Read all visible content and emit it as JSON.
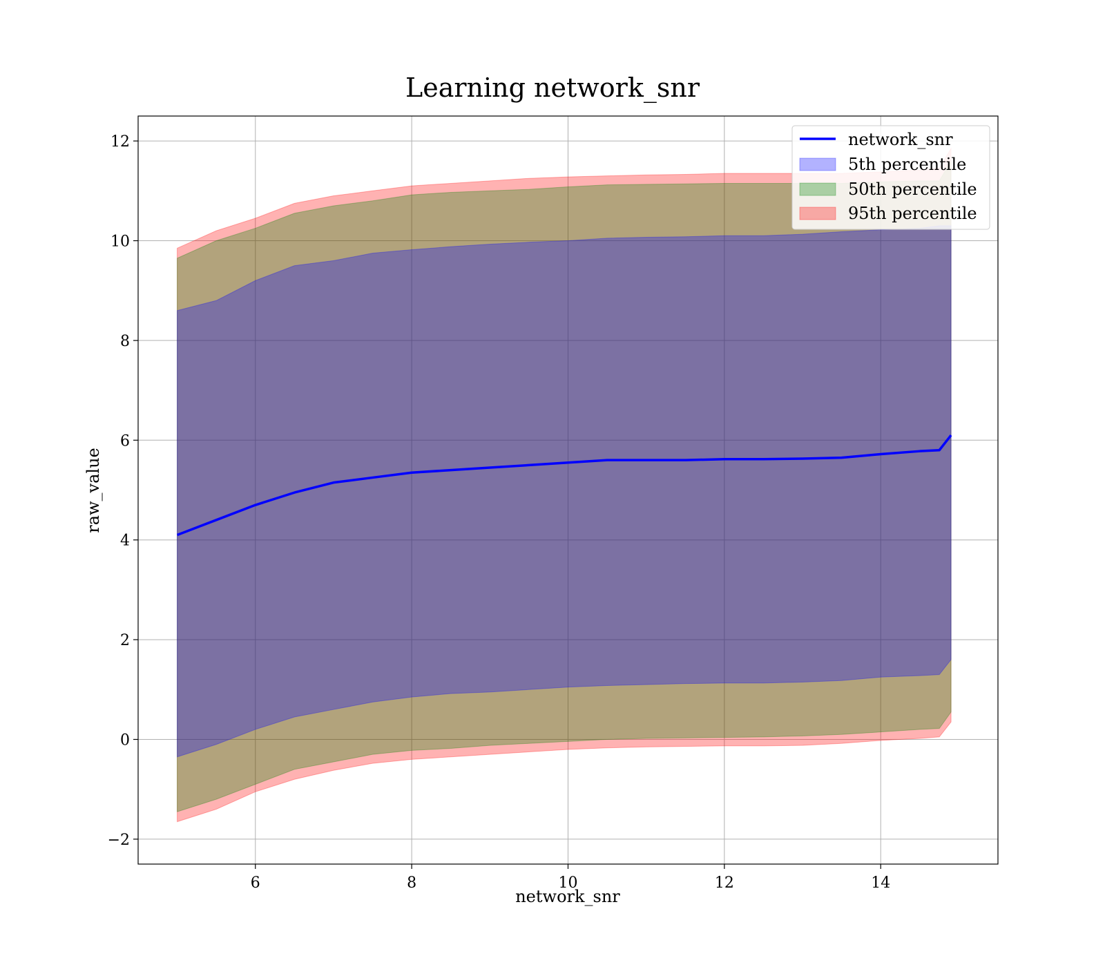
{
  "chart_data": {
    "type": "area",
    "title": "Learning network_snr",
    "xlabel": "network_snr",
    "ylabel": "raw_value",
    "xlim": [
      4.5,
      15.5
    ],
    "ylim": [
      -2.5,
      12.5
    ],
    "xticks": [
      6,
      8,
      10,
      12,
      14
    ],
    "yticks": [
      -2,
      0,
      2,
      4,
      6,
      8,
      10,
      12
    ],
    "grid": true,
    "legend_position": "upper-right",
    "x": [
      5.0,
      5.5,
      6.0,
      6.5,
      7.0,
      7.5,
      8.0,
      8.5,
      9.0,
      9.5,
      10.0,
      10.5,
      11.0,
      11.5,
      12.0,
      12.5,
      13.0,
      13.5,
      14.0,
      14.5,
      14.75,
      14.9
    ],
    "line": {
      "name": "network_snr",
      "color": "#0000ff",
      "values": [
        4.1,
        4.4,
        4.7,
        4.95,
        5.15,
        5.25,
        5.35,
        5.4,
        5.45,
        5.5,
        5.55,
        5.6,
        5.6,
        5.6,
        5.62,
        5.62,
        5.63,
        5.65,
        5.72,
        5.78,
        5.8,
        6.1
      ]
    },
    "series": [
      {
        "name": "5th percentile",
        "color": "#0000ff",
        "lower": [
          -0.35,
          -0.1,
          0.2,
          0.45,
          0.6,
          0.75,
          0.85,
          0.92,
          0.95,
          1.0,
          1.05,
          1.08,
          1.1,
          1.12,
          1.13,
          1.13,
          1.15,
          1.18,
          1.25,
          1.28,
          1.3,
          1.6
        ],
        "upper": [
          8.6,
          8.8,
          9.2,
          9.5,
          9.6,
          9.75,
          9.82,
          9.88,
          9.93,
          9.97,
          10.0,
          10.05,
          10.07,
          10.08,
          10.1,
          10.1,
          10.13,
          10.18,
          10.22,
          10.25,
          10.3,
          10.3
        ]
      },
      {
        "name": "50th percentile",
        "color": "#008000",
        "lower": [
          -1.45,
          -1.2,
          -0.9,
          -0.6,
          -0.45,
          -0.3,
          -0.22,
          -0.18,
          -0.12,
          -0.08,
          -0.04,
          0.0,
          0.02,
          0.03,
          0.04,
          0.05,
          0.07,
          0.1,
          0.15,
          0.2,
          0.22,
          0.55
        ],
        "upper": [
          9.65,
          10.0,
          10.25,
          10.55,
          10.7,
          10.8,
          10.92,
          10.97,
          11.0,
          11.03,
          11.08,
          11.12,
          11.13,
          11.14,
          11.15,
          11.15,
          11.15,
          11.15,
          11.18,
          11.2,
          11.2,
          11.6
        ]
      },
      {
        "name": "95th percentile",
        "color": "#ff0000",
        "lower": [
          -1.65,
          -1.4,
          -1.05,
          -0.8,
          -0.62,
          -0.48,
          -0.4,
          -0.35,
          -0.3,
          -0.25,
          -0.2,
          -0.17,
          -0.15,
          -0.14,
          -0.13,
          -0.13,
          -0.12,
          -0.08,
          -0.02,
          0.02,
          0.05,
          0.35
        ],
        "upper": [
          9.85,
          10.2,
          10.45,
          10.75,
          10.9,
          11.0,
          11.1,
          11.15,
          11.2,
          11.25,
          11.28,
          11.3,
          11.32,
          11.33,
          11.35,
          11.35,
          11.35,
          11.35,
          11.38,
          11.42,
          11.45,
          11.85
        ]
      }
    ]
  }
}
